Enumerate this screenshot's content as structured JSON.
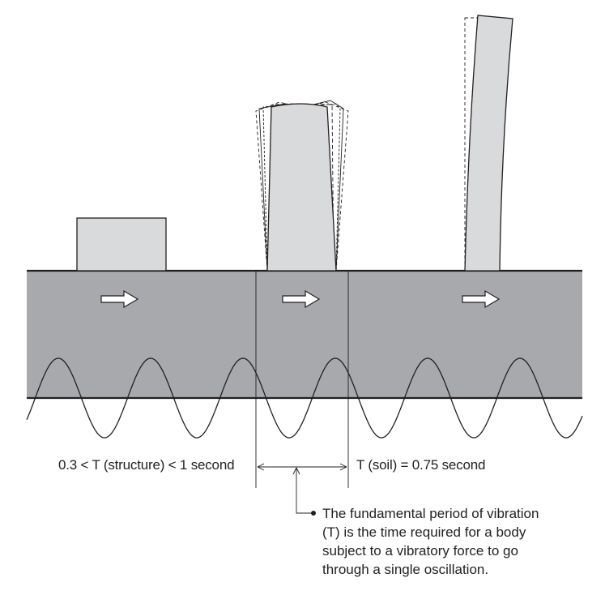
{
  "labels": {
    "structure_period": "0.3 < T (structure) < 1 second",
    "soil_period": "T (soil) = 0.75 second"
  },
  "caption": {
    "lines": [
      "The fundamental period of vibration",
      "(T) is the time required for a body",
      "subject to a vibratory force to go",
      "through a single oscillation."
    ]
  },
  "colors": {
    "soil": "#a7a9ac",
    "building": "#d9dadb",
    "line": "#231f20",
    "arrow_fill": "#ffffff"
  },
  "icons": [
    "right-arrow-icon",
    "bullet-dot-icon"
  ]
}
